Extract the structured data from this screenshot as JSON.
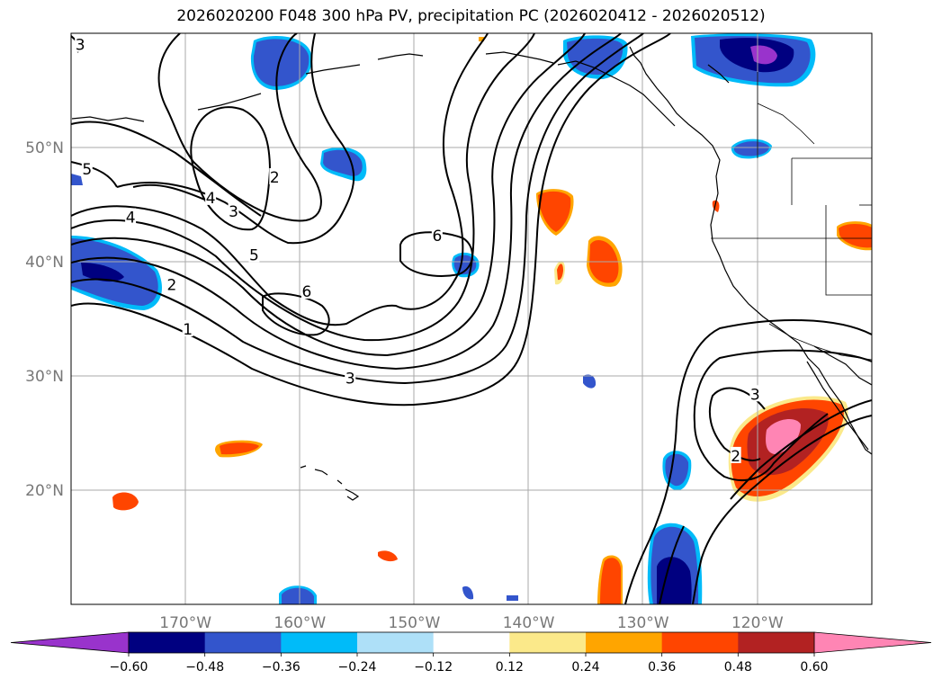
{
  "title": "2026020200 F048 300 hPa PV, precipitation PC (2026020412 - 2026020512)",
  "map": {
    "lon_range": [
      -180,
      -110
    ],
    "lat_range": [
      10,
      60
    ],
    "lon_ticks": [
      {
        "lon": -170,
        "label": "170°W"
      },
      {
        "lon": -160,
        "label": "160°W"
      },
      {
        "lon": -150,
        "label": "150°W"
      },
      {
        "lon": -140,
        "label": "140°W"
      },
      {
        "lon": -130,
        "label": "130°W"
      },
      {
        "lon": -120,
        "label": "120°W"
      }
    ],
    "lat_ticks": [
      {
        "lat": 20,
        "label": "20°N"
      },
      {
        "lat": 30,
        "label": "30°N"
      },
      {
        "lat": 40,
        "label": "40°N"
      },
      {
        "lat": 50,
        "label": "50°N"
      }
    ]
  },
  "pv_contour_labels": [
    {
      "text": "3",
      "lon": -179.2,
      "lat": 59.0
    },
    {
      "text": "5",
      "lon": -178.6,
      "lat": 48.1
    },
    {
      "text": "2",
      "lon": -162.2,
      "lat": 47.4
    },
    {
      "text": "4",
      "lon": -167.8,
      "lat": 45.6
    },
    {
      "text": "3",
      "lon": -165.8,
      "lat": 44.4
    },
    {
      "text": "4",
      "lon": -174.8,
      "lat": 43.9
    },
    {
      "text": "5",
      "lon": -164.0,
      "lat": 40.6
    },
    {
      "text": "6",
      "lon": -148.0,
      "lat": 42.3
    },
    {
      "text": "2",
      "lon": -171.2,
      "lat": 38.0
    },
    {
      "text": "6",
      "lon": -159.4,
      "lat": 37.4
    },
    {
      "text": "1",
      "lon": -169.8,
      "lat": 34.1
    },
    {
      "text": "3",
      "lon": -155.6,
      "lat": 29.8
    },
    {
      "text": "3",
      "lon": -120.2,
      "lat": 28.4
    },
    {
      "text": "2",
      "lon": -121.9,
      "lat": 23.0
    }
  ],
  "colorbar": {
    "levels": [
      -0.6,
      -0.48,
      -0.36,
      -0.24,
      -0.12,
      0.12,
      0.24,
      0.36,
      0.48,
      0.6
    ],
    "labels": [
      "−0.60",
      "−0.48",
      "−0.36",
      "−0.24",
      "−0.12",
      "0.12",
      "0.24",
      "0.36",
      "0.48",
      "0.60"
    ],
    "colors": [
      "#9933cc",
      "#000080",
      "#3355cc",
      "#00bbf9",
      "#aee0f8",
      "#ffffff",
      "#fbe98a",
      "#ffa500",
      "#ff4500",
      "#b22222",
      "#ff85b4"
    ]
  }
}
